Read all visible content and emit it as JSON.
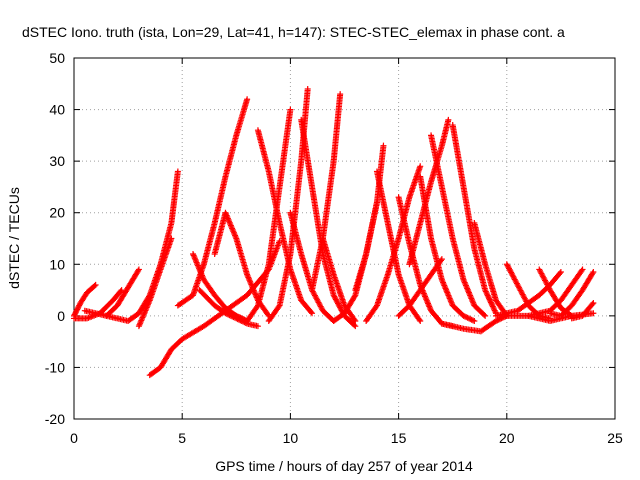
{
  "chart_data": {
    "type": "scatter",
    "title": "dSTEC Iono. truth (ista, Lon=29, Lat=41, h=147): STEC-STEC_elemax in phase cont. a",
    "xlabel": "GPS time / hours of day 257 of year 2014",
    "ylabel": "dSTEC  / TECUs",
    "xlim": [
      0,
      25
    ],
    "ylim": [
      -20,
      50
    ],
    "xticks": [
      0,
      5,
      10,
      15,
      20,
      25
    ],
    "yticks": [
      -20,
      -10,
      0,
      10,
      20,
      30,
      40,
      50
    ],
    "grid": true,
    "legend": "none",
    "marker": "plus",
    "color": "#ff0000",
    "series": [
      {
        "x": [
          0.0,
          0.3,
          0.6,
          1.0
        ],
        "y": [
          0.0,
          2.5,
          4.5,
          6.0
        ]
      },
      {
        "x": [
          0.0,
          0.6,
          1.2,
          1.8,
          2.2
        ],
        "y": [
          -0.5,
          -0.5,
          0.5,
          3.0,
          5.0
        ]
      },
      {
        "x": [
          0.5,
          1.0,
          1.5,
          2.0,
          2.5,
          3.0
        ],
        "y": [
          1.0,
          0.5,
          0.0,
          2.0,
          5.5,
          9.0
        ]
      },
      {
        "x": [
          1.5,
          2.0,
          2.5,
          3.0,
          3.5,
          4.0,
          4.5,
          4.8
        ],
        "y": [
          0.0,
          -0.5,
          -1.0,
          0.5,
          4.0,
          10.0,
          18.0,
          28.0
        ]
      },
      {
        "x": [
          3.0,
          3.5,
          4.0,
          4.5
        ],
        "y": [
          -2.0,
          3.0,
          9.0,
          15.0
        ]
      },
      {
        "x": [
          3.5,
          4.0,
          4.5,
          5.0,
          6.0,
          7.0,
          8.0,
          9.0,
          9.5
        ],
        "y": [
          -11.5,
          -10.0,
          -6.5,
          -4.5,
          -2.0,
          1.0,
          4.0,
          9.0,
          14.5
        ]
      },
      {
        "x": [
          4.8,
          5.5,
          6.0,
          6.5,
          7.0,
          7.5,
          8.0
        ],
        "y": [
          2.0,
          4.0,
          10.0,
          18.0,
          27.0,
          35.0,
          42.0
        ]
      },
      {
        "x": [
          5.5,
          6.0,
          6.5,
          7.0,
          7.5,
          8.0
        ],
        "y": [
          12.0,
          7.0,
          4.0,
          1.5,
          0.0,
          -1.0
        ]
      },
      {
        "x": [
          5.8,
          6.5,
          7.0,
          7.5,
          8.0,
          8.5
        ],
        "y": [
          5.0,
          2.0,
          0.5,
          -0.5,
          -1.5,
          -2.0
        ]
      },
      {
        "x": [
          6.5,
          7.0,
          7.5,
          8.0,
          8.5,
          9.0
        ],
        "y": [
          12.0,
          20.0,
          15.0,
          8.0,
          3.0,
          0.0
        ]
      },
      {
        "x": [
          7.0,
          7.5,
          8.0,
          8.5,
          9.0,
          9.5,
          10.0
        ],
        "y": [
          1.0,
          0.0,
          -1.0,
          2.0,
          10.0,
          25.0,
          40.0
        ]
      },
      {
        "x": [
          8.5,
          9.0,
          9.5,
          10.0,
          10.5,
          11.0
        ],
        "y": [
          36.0,
          28.0,
          18.0,
          9.0,
          3.0,
          0.5
        ]
      },
      {
        "x": [
          9.0,
          9.5,
          10.0,
          10.5,
          10.8
        ],
        "y": [
          -1.0,
          2.0,
          12.0,
          30.0,
          44.0
        ]
      },
      {
        "x": [
          10.0,
          10.5,
          11.0,
          11.5,
          12.0
        ],
        "y": [
          20.0,
          12.0,
          5.0,
          1.0,
          -1.0
        ]
      },
      {
        "x": [
          10.5,
          11.0,
          11.5,
          12.0,
          12.5,
          13.0
        ],
        "y": [
          38.0,
          25.0,
          12.0,
          4.0,
          0.0,
          -2.0
        ]
      },
      {
        "x": [
          11.0,
          11.5,
          12.0,
          12.3
        ],
        "y": [
          5.0,
          15.0,
          30.0,
          43.0
        ]
      },
      {
        "x": [
          11.5,
          12.0,
          12.5,
          13.0
        ],
        "y": [
          15.0,
          8.0,
          2.0,
          -1.0
        ]
      },
      {
        "x": [
          12.0,
          12.5,
          13.0,
          13.5,
          14.0
        ],
        "y": [
          -1.0,
          0.5,
          4.0,
          12.0,
          22.0
        ]
      },
      {
        "x": [
          13.0,
          13.5,
          14.0,
          14.3
        ],
        "y": [
          5.0,
          12.0,
          22.0,
          33.0
        ]
      },
      {
        "x": [
          14.0,
          14.5,
          15.0,
          15.5,
          16.0
        ],
        "y": [
          28.0,
          18.0,
          8.0,
          2.0,
          -1.0
        ]
      },
      {
        "x": [
          13.5,
          14.0,
          14.5,
          15.0,
          15.5,
          16.0
        ],
        "y": [
          -1.0,
          2.0,
          8.0,
          15.0,
          23.0,
          29.0
        ]
      },
      {
        "x": [
          15.0,
          15.5,
          16.0,
          16.5,
          17.0,
          17.5
        ],
        "y": [
          23.0,
          14.0,
          6.0,
          1.0,
          -1.5,
          -2.0
        ]
      },
      {
        "x": [
          15.5,
          16.0,
          16.5,
          17.0,
          17.3
        ],
        "y": [
          10.0,
          18.0,
          26.0,
          33.0,
          38.0
        ]
      },
      {
        "x": [
          16.0,
          16.5,
          17.0,
          17.5,
          18.0,
          18.5
        ],
        "y": [
          27.0,
          15.0,
          7.0,
          2.0,
          0.0,
          -1.0
        ]
      },
      {
        "x": [
          15.0,
          15.5,
          16.0,
          16.5,
          17.0
        ],
        "y": [
          0.0,
          2.0,
          5.0,
          8.0,
          11.0
        ]
      },
      {
        "x": [
          16.5,
          17.0,
          17.5,
          18.0,
          18.5,
          19.0
        ],
        "y": [
          35.0,
          25.0,
          15.0,
          7.0,
          2.0,
          0.0
        ]
      },
      {
        "x": [
          17.5,
          18.0,
          18.5,
          19.0,
          19.5
        ],
        "y": [
          37.0,
          25.0,
          13.0,
          5.0,
          0.5
        ]
      },
      {
        "x": [
          18.5,
          19.0,
          19.5,
          20.0
        ],
        "y": [
          18.0,
          10.0,
          3.0,
          0.0
        ]
      },
      {
        "x": [
          17.0,
          18.0,
          18.8,
          19.5,
          20.0
        ],
        "y": [
          -1.5,
          -2.5,
          -3.0,
          -1.0,
          0.0
        ]
      },
      {
        "x": [
          20.0,
          20.5,
          21.0,
          21.5,
          22.0
        ],
        "y": [
          10.0,
          6.0,
          2.0,
          0.0,
          -0.5
        ]
      },
      {
        "x": [
          19.5,
          20.5,
          21.5,
          22.0,
          22.5
        ],
        "y": [
          0.0,
          1.0,
          4.0,
          6.0,
          8.5
        ]
      },
      {
        "x": [
          21.5,
          22.0,
          22.5,
          23.0
        ],
        "y": [
          9.0,
          5.0,
          1.5,
          0.0
        ]
      },
      {
        "x": [
          21.0,
          22.0,
          22.5,
          23.0,
          23.5
        ],
        "y": [
          0.0,
          1.0,
          3.0,
          6.0,
          9.0
        ]
      },
      {
        "x": [
          22.0,
          22.5,
          23.0,
          23.5,
          24.0
        ],
        "y": [
          0.5,
          0.0,
          2.0,
          5.0,
          8.5
        ]
      },
      {
        "x": [
          20.0,
          21.0,
          22.0,
          23.0,
          24.0
        ],
        "y": [
          0.0,
          0.0,
          -1.0,
          0.0,
          0.5
        ]
      },
      {
        "x": [
          23.0,
          23.5,
          24.0
        ],
        "y": [
          -0.5,
          0.0,
          2.5
        ]
      }
    ]
  }
}
